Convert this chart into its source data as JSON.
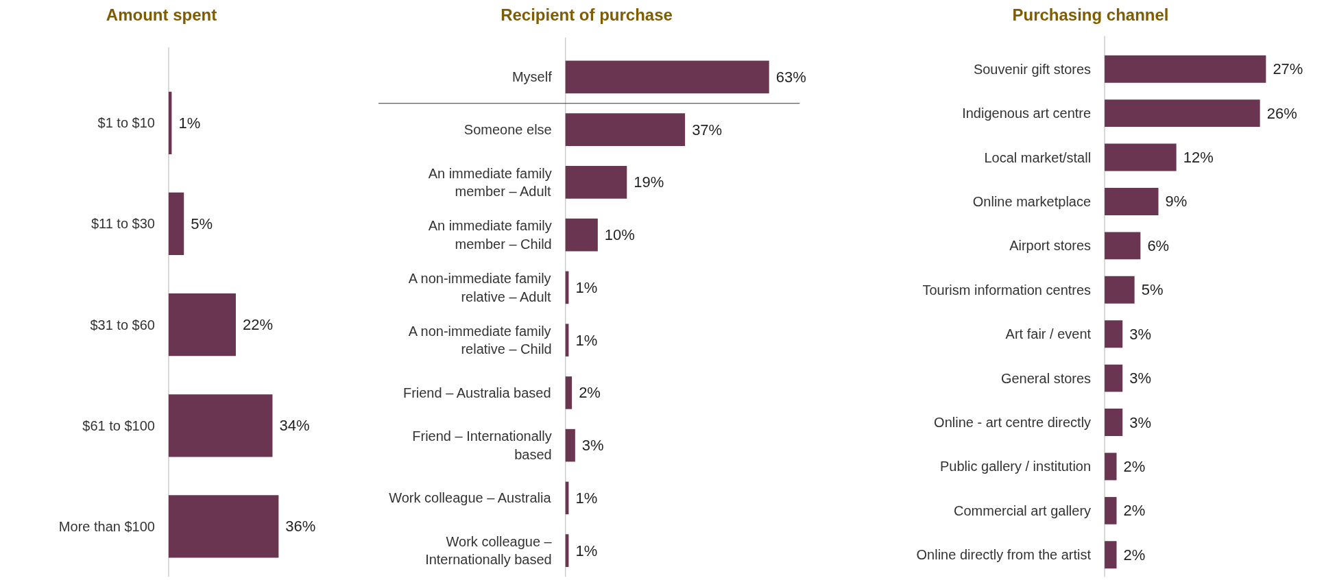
{
  "chart_data": [
    {
      "type": "bar",
      "orientation": "horizontal",
      "title": "Amount spent",
      "categories": [
        "$1 to $10",
        "$11 to $30",
        "$31 to $60",
        "$61 to $100",
        "More than $100"
      ],
      "values": [
        1,
        5,
        22,
        34,
        36
      ],
      "value_labels": [
        "1%",
        "5%",
        "22%",
        "34%",
        "36%"
      ],
      "color": "#6a3550",
      "grid": false
    },
    {
      "type": "bar",
      "orientation": "horizontal",
      "title": "Recipient of purchase",
      "categories": [
        "Myself",
        "Someone else",
        "An immediate family\nmember – Adult",
        "An immediate family\nmember – Child",
        "A non-immediate family\nrelative – Adult",
        "A non-immediate family\nrelative – Child",
        "Friend – Australia based",
        "Friend – Internationally\nbased",
        "Work colleague – Australia",
        "Work colleague –\nInternationally based"
      ],
      "values": [
        63,
        37,
        19,
        10,
        1,
        1,
        2,
        3,
        1,
        1
      ],
      "value_labels": [
        "63%",
        "37%",
        "19%",
        "10%",
        "1%",
        "1%",
        "2%",
        "3%",
        "1%",
        "1%"
      ],
      "color": "#6a3550",
      "grid": false
    },
    {
      "type": "bar",
      "orientation": "horizontal",
      "title": "Purchasing channel",
      "categories": [
        "Souvenir gift stores",
        "Indigenous art centre",
        "Local market/stall",
        "Online marketplace",
        "Airport stores",
        "Tourism information centres",
        "Art fair / event",
        "General stores",
        "Online - art centre directly",
        "Public gallery / institution",
        "Commercial art gallery",
        "Online directly from the artist"
      ],
      "values": [
        27,
        26,
        12,
        9,
        6,
        5,
        3,
        3,
        3,
        2,
        2,
        2
      ],
      "value_labels": [
        "27%",
        "26%",
        "12%",
        "9%",
        "6%",
        "5%",
        "3%",
        "3%",
        "3%",
        "2%",
        "2%",
        "2%"
      ],
      "color": "#6a3550",
      "grid": false
    }
  ]
}
